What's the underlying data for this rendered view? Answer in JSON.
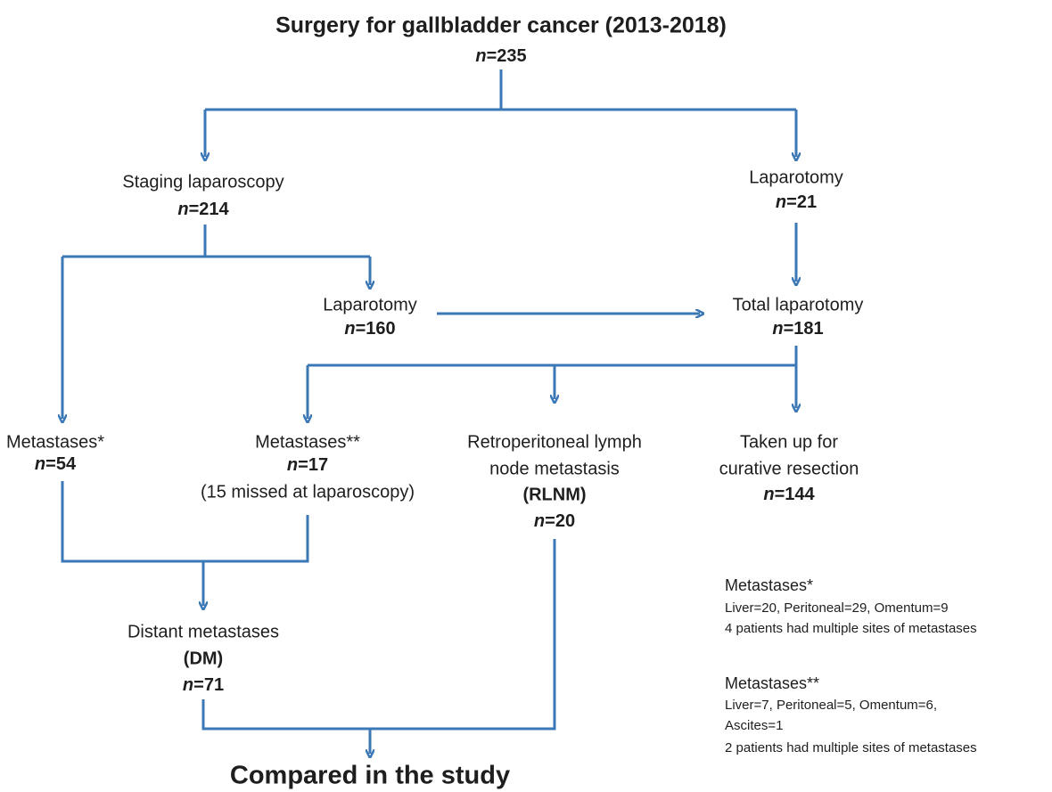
{
  "title": "Surgery for gallbladder cancer (2013-2018)",
  "title_count": {
    "symbol": "n",
    "value": "=235"
  },
  "nodes": [
    {
      "lines": [
        "Staging laparoscopy"
      ],
      "count": {
        "symbol": "n",
        "value": "=214"
      }
    },
    {
      "lines": [
        "Laparotomy"
      ],
      "count": {
        "symbol": "n",
        "value": "=21"
      }
    },
    {
      "lines": [
        "Laparotomy"
      ],
      "count": {
        "symbol": "n",
        "value": "=160"
      }
    },
    {
      "lines": [
        "Total laparotomy"
      ],
      "count": {
        "symbol": "n",
        "value": "=181"
      }
    },
    {
      "lines": [
        "Metastases*"
      ],
      "count": {
        "symbol": "n",
        "value": "=54"
      }
    },
    {
      "lines": [
        "Metastases**"
      ],
      "count": {
        "symbol": "n",
        "value": "=17"
      },
      "note": "(15 missed at laparoscopy)"
    },
    {
      "lines": [
        "Retroperitoneal lymph",
        "node metastasis",
        "(RLNM)"
      ],
      "count": {
        "symbol": "n",
        "value": "=20"
      }
    },
    {
      "lines": [
        "Taken up for",
        "curative resection"
      ],
      "count": {
        "symbol": "n",
        "value": "=144"
      }
    },
    {
      "lines": [
        "Distant metastases",
        "(DM)"
      ],
      "count": {
        "symbol": "n",
        "value": "=71"
      }
    }
  ],
  "final": "Compared in the study",
  "footnotes": [
    {
      "heading": "Metastases*",
      "lines": [
        "Liver=20, Peritoneal=29, Omentum=9",
        "4 patients had multiple sites of metastases"
      ]
    },
    {
      "heading": "Metastases**",
      "lines": [
        "Liver=7, Peritoneal=5, Omentum=6,",
        "Ascites=1",
        "2 patients had multiple sites of metastases"
      ]
    }
  ]
}
